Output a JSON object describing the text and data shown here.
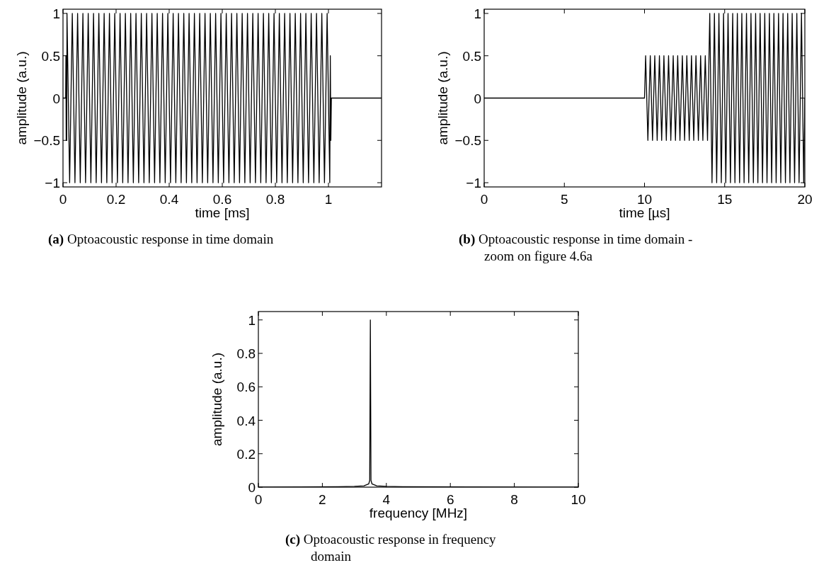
{
  "chart_data": [
    {
      "type": "line",
      "xlabel": "time [ms]",
      "ylabel": "amplitude (a.u.)",
      "annotations": [
        "(a) Optoacoustic response in time domain"
      ],
      "xlim": [
        0,
        1.2
      ],
      "xticks": [
        0,
        0.2,
        0.4,
        0.6,
        0.8,
        1
      ],
      "ylim": [
        -1.05,
        1.05
      ],
      "yticks": [
        -1,
        -0.5,
        0,
        0.5,
        1
      ],
      "series": [
        {
          "color": "#000000",
          "x": [
            0,
            0.01,
            0.011,
            0.012,
            0.013,
            0.014,
            0.015,
            0.025,
            0.035,
            0.045,
            0.055,
            0.065,
            0.075,
            0.085,
            0.095,
            0.105,
            0.115,
            0.125,
            0.135,
            0.145,
            0.155,
            0.165,
            0.175,
            0.185,
            0.195,
            0.205,
            0.215,
            0.225,
            0.235,
            0.245,
            0.255,
            0.265,
            0.275,
            0.285,
            0.295,
            0.305,
            0.315,
            0.325,
            0.335,
            0.345,
            0.355,
            0.365,
            0.375,
            0.385,
            0.395,
            0.405,
            0.415,
            0.425,
            0.435,
            0.445,
            0.455,
            0.465,
            0.475,
            0.485,
            0.495,
            0.505,
            0.515,
            0.525,
            0.535,
            0.545,
            0.555,
            0.565,
            0.575,
            0.585,
            0.595,
            0.605,
            0.615,
            0.625,
            0.635,
            0.645,
            0.655,
            0.665,
            0.675,
            0.685,
            0.695,
            0.705,
            0.715,
            0.725,
            0.735,
            0.745,
            0.755,
            0.765,
            0.775,
            0.785,
            0.795,
            0.805,
            0.815,
            0.825,
            0.835,
            0.845,
            0.855,
            0.865,
            0.875,
            0.885,
            0.895,
            0.905,
            0.915,
            0.925,
            0.935,
            0.945,
            0.955,
            0.965,
            0.975,
            0.985,
            0.995,
            1.005,
            1.007,
            1.009,
            1.011,
            1.2
          ],
          "values": [
            0,
            0,
            0.5,
            -0.5,
            0.5,
            -0.5,
            1,
            -1,
            1,
            -1,
            1,
            -1,
            1,
            -1,
            1,
            -1,
            1,
            -1,
            1,
            -1,
            1,
            -1,
            1,
            -1,
            1,
            -1,
            1,
            -1,
            1,
            -1,
            1,
            -1,
            1,
            -1,
            1,
            -1,
            1,
            -1,
            1,
            -1,
            1,
            -1,
            1,
            -1,
            1,
            -1,
            1,
            -1,
            1,
            -1,
            1,
            -1,
            1,
            -1,
            1,
            -1,
            1,
            -1,
            1,
            -1,
            1,
            -1,
            1,
            -1,
            1,
            -1,
            1,
            -1,
            1,
            -1,
            1,
            -1,
            1,
            -1,
            1,
            -1,
            1,
            -1,
            1,
            -1,
            1,
            -1,
            1,
            -1,
            1,
            -1,
            1,
            -1,
            1,
            -1,
            1,
            -1,
            1,
            -1,
            1,
            -1,
            1,
            -1,
            1,
            -1,
            1,
            -1,
            1,
            -1,
            1,
            -1,
            0.5,
            -0.5,
            0,
            0
          ]
        }
      ]
    },
    {
      "type": "line",
      "xlabel": "time [µs]",
      "ylabel": "amplitude (a.u.)",
      "annotations": [
        "(b) Optoacoustic response in time domain - zoom on figure 4.6a"
      ],
      "xlim": [
        0,
        20
      ],
      "xticks": [
        0,
        5,
        10,
        15,
        20
      ],
      "ylim": [
        -1.05,
        1.05
      ],
      "yticks": [
        -1,
        -0.5,
        0,
        0.5,
        1
      ],
      "series": [
        {
          "color": "#000000",
          "x": [
            0,
            10,
            10.07,
            10.21,
            10.36,
            10.5,
            10.64,
            10.79,
            10.93,
            11.07,
            11.21,
            11.36,
            11.5,
            11.64,
            11.79,
            11.93,
            12.07,
            12.21,
            12.36,
            12.5,
            12.64,
            12.79,
            12.93,
            13.07,
            13.21,
            13.36,
            13.5,
            13.64,
            13.79,
            13.93,
            14.07,
            14.21,
            14.36,
            14.5,
            14.64,
            14.79,
            14.93,
            15.07,
            15.21,
            15.36,
            15.5,
            15.64,
            15.79,
            15.93,
            16.07,
            16.21,
            16.36,
            16.5,
            16.64,
            16.79,
            16.93,
            17.07,
            17.21,
            17.36,
            17.5,
            17.64,
            17.79,
            17.93,
            18.07,
            18.21,
            18.36,
            18.5,
            18.64,
            18.79,
            18.93,
            19.07,
            19.21,
            19.36,
            19.5,
            19.64,
            19.79,
            19.93,
            20
          ],
          "values": [
            0,
            0,
            0.5,
            -0.5,
            0.5,
            -0.5,
            0.5,
            -0.5,
            0.5,
            -0.5,
            0.5,
            -0.5,
            0.5,
            -0.5,
            0.5,
            -0.5,
            0.5,
            -0.5,
            0.5,
            -0.5,
            0.5,
            -0.5,
            0.5,
            -0.5,
            0.5,
            -0.5,
            0.5,
            -0.5,
            0.5,
            -0.5,
            1,
            -1,
            1,
            -1,
            1,
            -1,
            1,
            -1,
            1,
            -1,
            1,
            -1,
            1,
            -1,
            1,
            -1,
            1,
            -1,
            1,
            -1,
            1,
            -1,
            1,
            -1,
            1,
            -1,
            1,
            -1,
            1,
            -1,
            1,
            -1,
            1,
            -1,
            1,
            -1,
            1,
            -1,
            1,
            -1,
            1,
            -1,
            0
          ]
        }
      ]
    },
    {
      "type": "line",
      "xlabel": "frequency [MHz]",
      "ylabel": "amplitude (a.u.)",
      "annotations": [
        "(c) Optoacoustic response in frequency domain"
      ],
      "xlim": [
        0,
        10
      ],
      "xticks": [
        0,
        2,
        4,
        6,
        8,
        10
      ],
      "ylim": [
        0,
        1.05
      ],
      "yticks": [
        0,
        0.2,
        0.4,
        0.6,
        0.8,
        1
      ],
      "series": [
        {
          "color": "#000000",
          "x": [
            0,
            2.5,
            3.0,
            3.3,
            3.45,
            3.48,
            3.5,
            3.52,
            3.55,
            3.7,
            4.0,
            4.5,
            10
          ],
          "values": [
            0,
            0.003,
            0.005,
            0.008,
            0.02,
            0.04,
            1,
            0.04,
            0.02,
            0.008,
            0.005,
            0.003,
            0
          ]
        }
      ]
    }
  ]
}
